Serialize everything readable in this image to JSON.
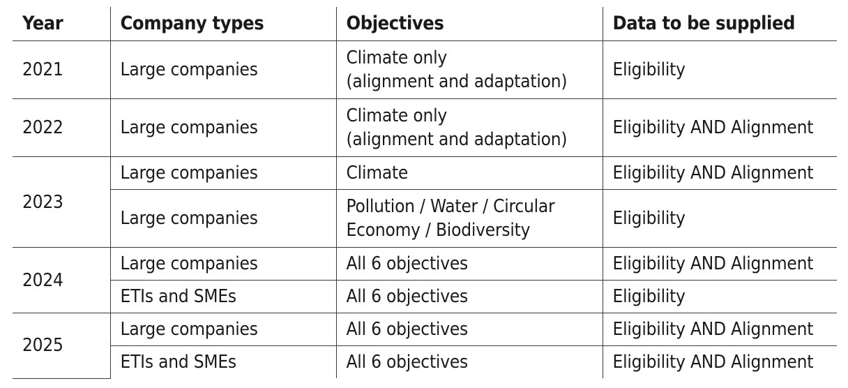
{
  "table": {
    "headers": [
      "Year",
      "Company types",
      "Objectives",
      "Data to be supplied"
    ],
    "rows": [
      {
        "year": "2021",
        "company": "Large companies",
        "objective_line1": "Climate only",
        "objective_line2": "(alignment and adaptation)",
        "data": "Eligibility"
      },
      {
        "year": "2022",
        "company": "Large companies",
        "objective_line1": "Climate only",
        "objective_line2": "(alignment and adaptation)",
        "data": "Eligibility AND Alignment"
      },
      {
        "year": "2023",
        "company": "Large companies",
        "objective": "Climate",
        "data": "Eligibility AND Alignment"
      },
      {
        "company": "Large companies",
        "objective_line1": "Pollution / Water / Circular",
        "objective_line2": "Economy / Biodiversity",
        "data": "Eligibility"
      },
      {
        "year": "2024",
        "company": "Large companies",
        "objective": "All 6 objectives",
        "data": "Eligibility AND Alignment"
      },
      {
        "company": "ETIs and SMEs",
        "objective": "All 6 objectives",
        "data": "Eligibility"
      },
      {
        "year": "2025",
        "company": "Large companies",
        "objective": "All 6 objectives",
        "data": "Eligibility AND Alignment"
      },
      {
        "company": "ETIs and SMEs",
        "objective": "All 6 objectives",
        "data": "Eligibility AND Alignment"
      }
    ]
  }
}
